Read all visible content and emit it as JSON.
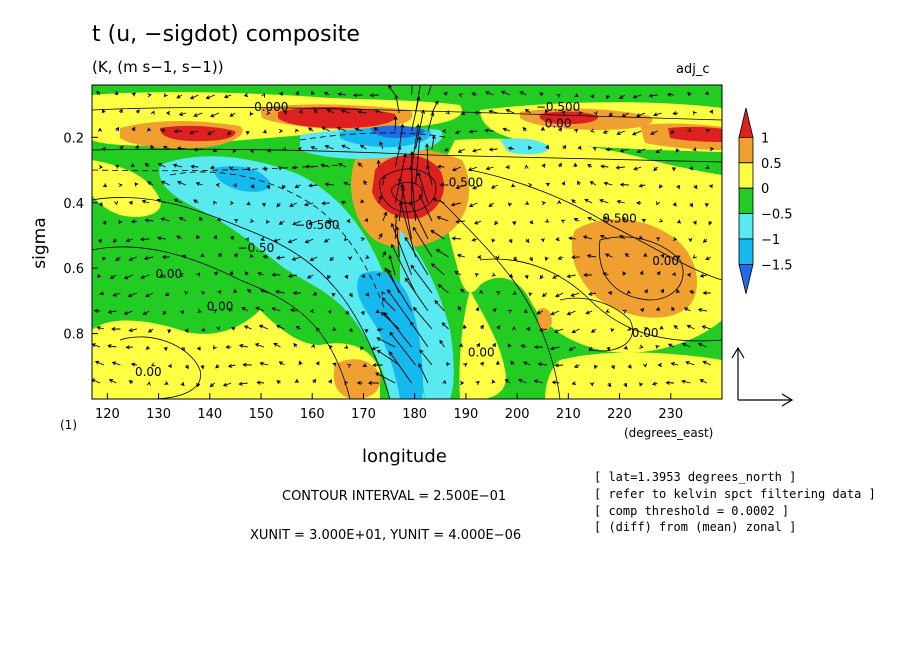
{
  "header": {
    "title": "t (u, −sigdot) composite",
    "subtitle": "(K, (m s−1, s−1))",
    "tag": "adj_c"
  },
  "footer": {
    "contour_interval": "CONTOUR INTERVAL = 2.500E−01",
    "vector_units": "XUNIT = 3.000E+01, YUNIT = 4.000E−06",
    "notes": [
      "[ lat=1.3953 degrees_north ]",
      "[ refer to kelvin spct filtering data ]",
      "[ comp threshold = 0.0002 ]",
      "[ (diff) from (mean) zonal ]"
    ]
  },
  "chart_data": {
    "type": "heatmap",
    "title": "t (u, −sigdot) composite",
    "subtitle": "(K, (m s−1, s−1))",
    "xlabel": "longitude",
    "xunits": "(degrees_east)",
    "ylabel": "sigma",
    "yunits": "(1)",
    "xlim": [
      117,
      240
    ],
    "ylim": [
      1.0,
      0.04
    ],
    "x_ticks": [
      120,
      130,
      140,
      150,
      160,
      170,
      180,
      190,
      200,
      210,
      220,
      230
    ],
    "y_ticks": [
      0.2,
      0.4,
      0.6,
      0.8
    ],
    "colorbar": {
      "levels": [
        -1.5,
        -1,
        -0.5,
        0,
        0.5,
        1
      ],
      "labels": [
        "1",
        "0.5",
        "0",
        "−0.5",
        "−1",
        "−1.5"
      ],
      "colors": [
        "#1f6ee8",
        "#16b8f0",
        "#58eaf0",
        "#22cc22",
        "#ffff44",
        "#f0a030",
        "#dd2020"
      ]
    },
    "contour_labels": [
      {
        "text": "0.000",
        "x": 152,
        "y": 0.12
      },
      {
        "text": "−0.500",
        "x": 208,
        "y": 0.12
      },
      {
        "text": "0.00",
        "x": 208,
        "y": 0.17
      },
      {
        "text": "0.500",
        "x": 190,
        "y": 0.35
      },
      {
        "text": "0.500",
        "x": 220,
        "y": 0.46
      },
      {
        "text": "−0.500",
        "x": 161,
        "y": 0.48
      },
      {
        "text": "−0.50",
        "x": 149,
        "y": 0.55
      },
      {
        "text": "0.00",
        "x": 132,
        "y": 0.63
      },
      {
        "text": "0.00",
        "x": 229,
        "y": 0.59
      },
      {
        "text": "0.00",
        "x": 142,
        "y": 0.73
      },
      {
        "text": "0.00",
        "x": 193,
        "y": 0.87
      },
      {
        "text": "0.00",
        "x": 225,
        "y": 0.81
      },
      {
        "text": "0.00",
        "x": 128,
        "y": 0.93
      }
    ],
    "legend": "colorbar at right, reference vector at bottom-right",
    "grid": false
  }
}
